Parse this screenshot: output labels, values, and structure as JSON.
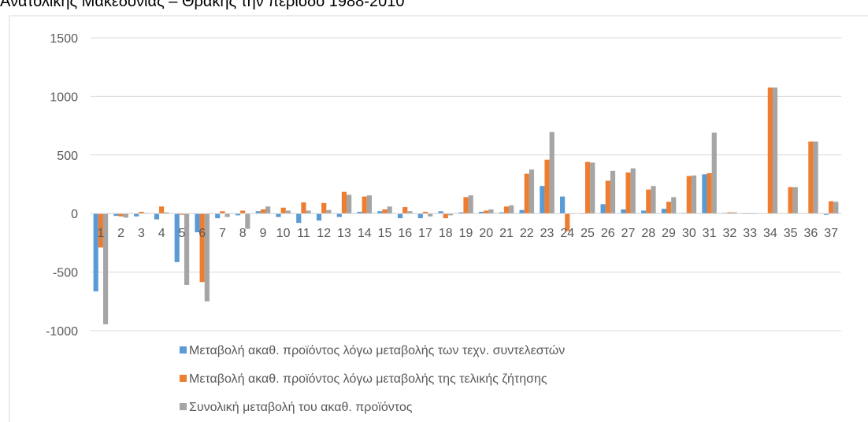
{
  "chart_data": {
    "type": "bar",
    "title": "Ανατολικής Μακεδονίας – Θράκης την περίοδο 1988-2010",
    "categories": [
      "1",
      "2",
      "3",
      "4",
      "5",
      "6",
      "7",
      "8",
      "9",
      "10",
      "11",
      "12",
      "13",
      "14",
      "15",
      "16",
      "17",
      "18",
      "19",
      "20",
      "21",
      "22",
      "23",
      "24",
      "25",
      "26",
      "27",
      "28",
      "29",
      "30",
      "31",
      "32",
      "33",
      "34",
      "35",
      "36",
      "37"
    ],
    "series": [
      {
        "name": "Μεταβολή  ακαθ. προϊόντος λόγω μεταβολής των τεχν. συντελεστών",
        "color": "#5b9bd5",
        "values": [
          -665,
          -20,
          -25,
          -50,
          -415,
          -160,
          -40,
          -15,
          20,
          -30,
          -80,
          -60,
          -30,
          15,
          20,
          -40,
          -40,
          20,
          10,
          15,
          10,
          30,
          235,
          145,
          -5,
          80,
          35,
          25,
          40,
          5,
          335,
          5,
          -5,
          0,
          0,
          0,
          -10
        ]
      },
      {
        "name": "Μεταβολή ακαθ. προϊόντος λόγω μεταβολής της τελικής ζήτησης",
        "color": "#ed7d31",
        "values": [
          -290,
          -25,
          15,
          60,
          -10,
          -585,
          20,
          25,
          35,
          50,
          95,
          90,
          185,
          145,
          35,
          55,
          15,
          -40,
          140,
          25,
          60,
          340,
          460,
          -150,
          440,
          280,
          350,
          205,
          100,
          320,
          345,
          10,
          -5,
          1075,
          225,
          615,
          105
        ]
      },
      {
        "name": "Συνολική μεταβολή του ακαθ. προϊόντος",
        "color": "#a5a5a5",
        "values": [
          -945,
          -35,
          5,
          10,
          -610,
          -750,
          -30,
          -130,
          60,
          25,
          25,
          30,
          160,
          155,
          60,
          20,
          -25,
          -15,
          155,
          35,
          70,
          375,
          695,
          -5,
          435,
          365,
          385,
          235,
          140,
          325,
          690,
          10,
          -5,
          1075,
          225,
          615,
          100
        ]
      }
    ],
    "ylim": [
      -1000,
      1500
    ],
    "yticks": [
      -1000,
      -500,
      0,
      500,
      1000,
      1500
    ],
    "grid": true
  }
}
